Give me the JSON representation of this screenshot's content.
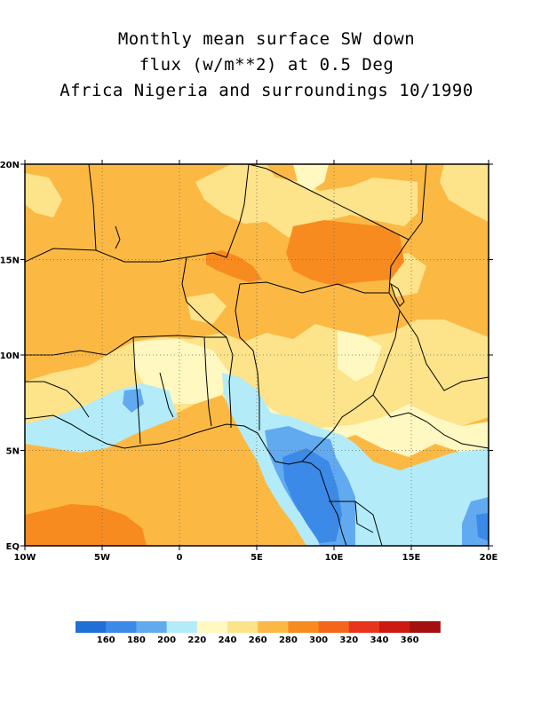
{
  "map": {
    "title_lines": [
      "Monthly mean surface SW down",
      "flux (w/m**2) at 0.5 Deg",
      "Africa Nigeria and surroundings 10/1990"
    ],
    "extent": {
      "lon": [
        -10,
        20
      ],
      "lat": [
        0,
        20
      ]
    },
    "x_ticks": [
      {
        "lon": -10,
        "label": "10W"
      },
      {
        "lon": -5,
        "label": "5W"
      },
      {
        "lon": 0,
        "label": "0"
      },
      {
        "lon": 5,
        "label": "5E"
      },
      {
        "lon": 10,
        "label": "10E"
      },
      {
        "lon": 15,
        "label": "15E"
      },
      {
        "lon": 20,
        "label": "20E"
      }
    ],
    "y_ticks": [
      {
        "lat": 0,
        "label": "EQ"
      },
      {
        "lat": 5,
        "label": "5N"
      },
      {
        "lat": 10,
        "label": "10N"
      },
      {
        "lat": 15,
        "label": "15N"
      },
      {
        "lat": 20,
        "label": "20N"
      }
    ],
    "grid": "dotted"
  },
  "legend": {
    "colors": [
      "#1e6fd6",
      "#3c8ae8",
      "#62aaf0",
      "#b3ecf8",
      "#fff8c0",
      "#fde38a",
      "#fbb944",
      "#f88b20",
      "#f4661a",
      "#e8341c",
      "#cc1a12",
      "#a41010"
    ],
    "labels": [
      "160",
      "180",
      "200",
      "220",
      "240",
      "260",
      "280",
      "300",
      "320",
      "340",
      "360"
    ]
  }
}
